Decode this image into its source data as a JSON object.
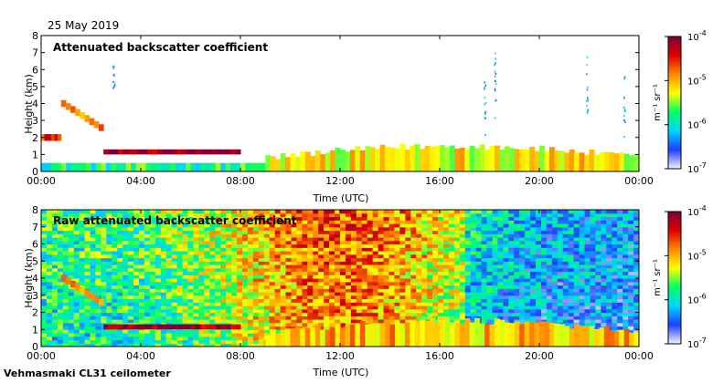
{
  "header": {
    "date": "25 May 2019"
  },
  "footer": {
    "instrument": "Vehmasmaki CL31 ceilometer"
  },
  "colorbar": {
    "ticks": [
      {
        "base": "10",
        "exp": "-4"
      },
      {
        "base": "10",
        "exp": "-5"
      },
      {
        "base": "10",
        "exp": "-6"
      },
      {
        "base": "10",
        "exp": "-7"
      }
    ],
    "unit": "m⁻¹ sr⁻¹",
    "colors": [
      "#f4f4ff",
      "#1f3fff",
      "#00d4ff",
      "#00ff66",
      "#ffff00",
      "#ff8800",
      "#dd0000",
      "#7a0033"
    ]
  },
  "chart_data": [
    {
      "type": "heatmap",
      "title": "Attenuated backscatter coefficient",
      "xlabel": "Time (UTC)",
      "ylabel": "Height (km)",
      "x_ticks": [
        "00:00",
        "04:00",
        "08:00",
        "12:00",
        "16:00",
        "20:00",
        "00:00"
      ],
      "y_ticks": [
        "0",
        "1",
        "2",
        "3",
        "4",
        "5",
        "6",
        "7",
        "8"
      ],
      "xlim": [
        0,
        24
      ],
      "ylim": [
        0,
        8
      ],
      "layers": [
        {
          "name": "surface aerosol layer",
          "t_start": 0,
          "t_end": 9,
          "base_km": 0,
          "top_km": 0.5,
          "level": 0.4
        },
        {
          "name": "early elevated layer",
          "t_start": 0.0,
          "t_end": 0.8,
          "base_km": 1.8,
          "top_km": 2.2,
          "level": 0.8
        },
        {
          "name": "residual layer 2-4 km",
          "t_start": 0.8,
          "t_end": 2.5,
          "base_km": 2.5,
          "top_km": 4.2,
          "level": 0.7
        },
        {
          "name": "cloud base 1-1.3 km",
          "t_start": 2.5,
          "t_end": 8.0,
          "base_km": 1.0,
          "top_km": 1.3,
          "level": 0.95
        },
        {
          "name": "convective boundary layer",
          "t_start": 9.0,
          "t_end": 24.0,
          "base_km": 0,
          "top_km": 1.5,
          "level": 0.6
        }
      ]
    },
    {
      "type": "heatmap",
      "title": "Raw attenuated backscatter coefficient",
      "xlabel": "Time (UTC)",
      "ylabel": "Height (km)",
      "x_ticks": [
        "00:00",
        "04:00",
        "08:00",
        "12:00",
        "16:00",
        "20:00",
        "00:00"
      ],
      "y_ticks": [
        "0",
        "1",
        "2",
        "3",
        "4",
        "5",
        "6",
        "7",
        "8"
      ],
      "xlim": [
        0,
        24
      ],
      "ylim": [
        0,
        8
      ],
      "layers": [
        {
          "name": "noise background",
          "t_start": 0,
          "t_end": 24,
          "base_km": 0,
          "top_km": 8,
          "level": 0.55
        },
        {
          "name": "cloud base 1-1.3 km",
          "t_start": 2.5,
          "t_end": 8.0,
          "base_km": 1.0,
          "top_km": 1.3,
          "level": 0.95
        },
        {
          "name": "elevated layer",
          "t_start": 0.8,
          "t_end": 2.5,
          "base_km": 2.5,
          "top_km": 4.2,
          "level": 0.75
        },
        {
          "name": "convective boundary layer",
          "t_start": 9.0,
          "t_end": 24.0,
          "base_km": 0,
          "top_km": 1.5,
          "level": 0.65
        }
      ]
    }
  ]
}
